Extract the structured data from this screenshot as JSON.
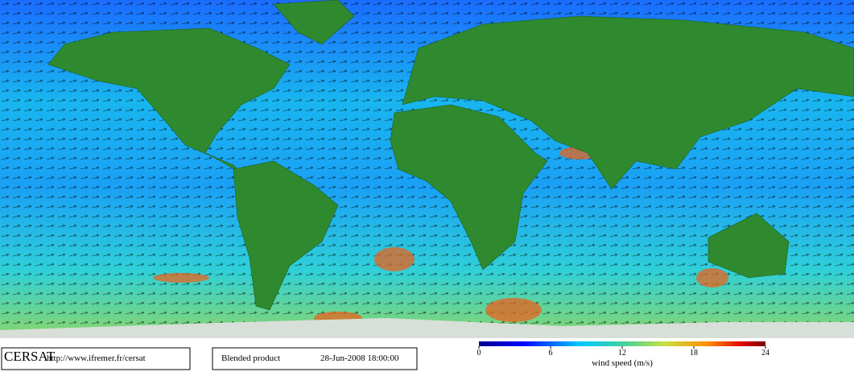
{
  "header": {
    "logo": "CERSAT",
    "url": "http://www.ifremer.fr/cersat"
  },
  "product": {
    "name": "Blended product",
    "date": "28-Jun-2008 18:00:00"
  },
  "colorbar": {
    "label": "wind speed (m/s)",
    "lim": [
      0,
      24
    ],
    "ticks": [
      0,
      6,
      12,
      18,
      24
    ]
  }
}
